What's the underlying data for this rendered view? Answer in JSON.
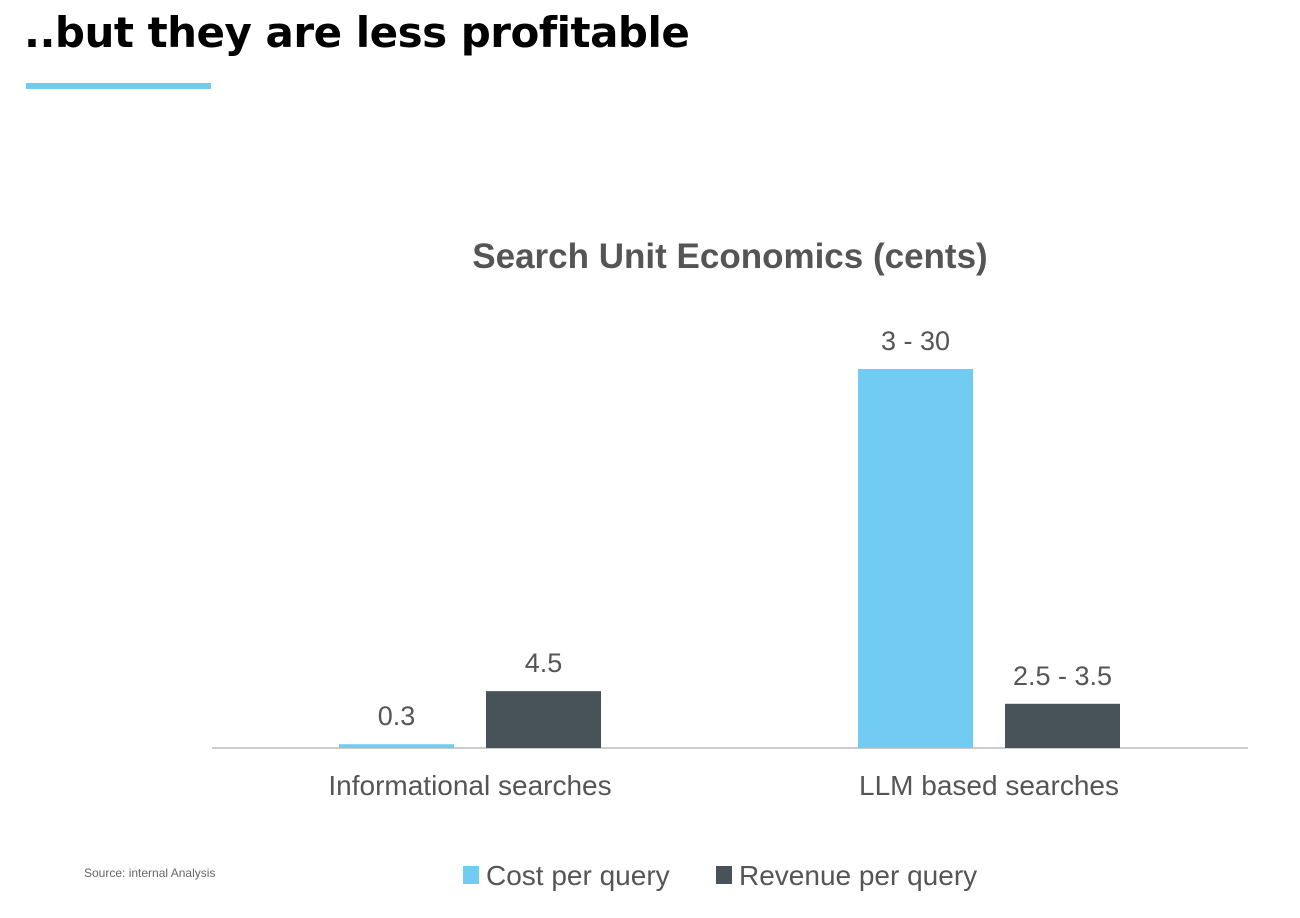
{
  "slide": {
    "title": "..but they are less profitable",
    "source": "Source: internal Analysis"
  },
  "colors": {
    "accent": "#72cbf3",
    "dark": "#485259",
    "title_text": "#555555",
    "label_text": "#555555",
    "axis": "#cccccc"
  },
  "chart_data": {
    "type": "bar",
    "title": "Search Unit Economics (cents)",
    "categories": [
      "Informational searches",
      "LLM based searches"
    ],
    "series": [
      {
        "name": "Cost per query",
        "values": [
          0.3,
          30
        ],
        "labels": [
          "0.3",
          "3 - 30"
        ]
      },
      {
        "name": "Revenue per query",
        "values": [
          4.5,
          3.5
        ],
        "labels": [
          "4.5",
          "2.5 - 3.5"
        ]
      }
    ],
    "ylim": [
      0,
      30
    ],
    "grid": false,
    "legend": "bottom"
  }
}
